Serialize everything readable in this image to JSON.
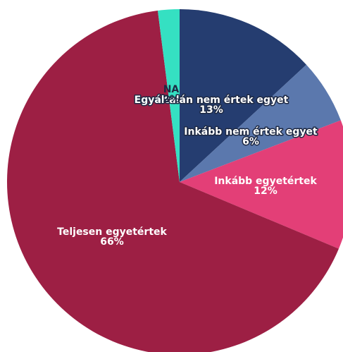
{
  "chart_data": {
    "type": "pie",
    "title": "",
    "slices": [
      {
        "label": "Egyáltalán nem értek egyet",
        "value": 13,
        "display": "13%",
        "color": "#253d70"
      },
      {
        "label": "Inkább nem értek egyet",
        "value": 6,
        "display": "6%",
        "color": "#5b78ad"
      },
      {
        "label": "Inkább egyetértek",
        "value": 12,
        "display": "12%",
        "color": "#e33f77"
      },
      {
        "label": "Teljesen egyetértek",
        "value": 66,
        "display": "66%",
        "color": "#9d1f44"
      },
      {
        "label": "NA",
        "value": 2,
        "display": "2%",
        "color": "#35e0c2"
      }
    ],
    "start_angle_deg": 0,
    "direction": "clockwise",
    "legend": "none"
  }
}
